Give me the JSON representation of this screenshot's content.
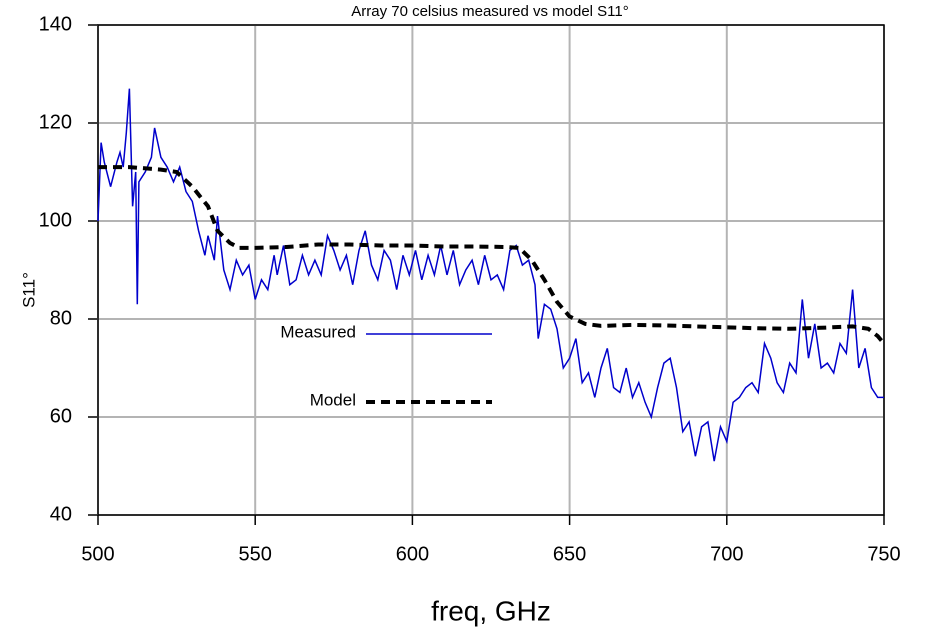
{
  "chart_data": {
    "type": "line",
    "title": "Array 70 celsius measured vs model S11°",
    "x_label": "freq, GHz",
    "y_label": "S11°",
    "xlim": [
      500,
      750
    ],
    "xticks": [
      500,
      550,
      600,
      650,
      700,
      750
    ],
    "ylim": [
      40,
      140
    ],
    "yticks": [
      40,
      60,
      80,
      100,
      120,
      140
    ],
    "grid": true,
    "series": [
      {
        "name": "Measured",
        "color": "#0000cc",
        "style": "solid",
        "x": [
          500,
          501,
          502,
          504,
          506,
          507,
          508,
          509,
          510,
          511,
          512,
          512.5,
          513,
          515,
          517,
          518,
          520,
          522,
          524,
          526,
          528,
          530,
          532,
          534,
          535,
          537,
          538,
          540,
          542,
          544,
          546,
          548,
          550,
          552,
          554,
          556,
          557,
          559,
          561,
          563,
          565,
          567,
          569,
          571,
          573,
          575,
          577,
          579,
          581,
          583,
          585,
          587,
          589,
          591,
          593,
          595,
          597,
          599,
          601,
          603,
          605,
          607,
          609,
          611,
          613,
          615,
          617,
          619,
          621,
          623,
          625,
          627,
          629,
          631,
          633,
          635,
          637,
          639,
          640,
          642,
          644,
          646,
          648,
          650,
          652,
          654,
          656,
          658,
          660,
          662,
          664,
          666,
          668,
          670,
          672,
          674,
          676,
          678,
          680,
          682,
          684,
          686,
          688,
          690,
          692,
          694,
          696,
          698,
          700,
          702,
          704,
          706,
          708,
          710,
          712,
          714,
          716,
          718,
          720,
          722,
          724,
          726,
          728,
          730,
          732,
          734,
          736,
          738,
          740,
          742,
          744,
          746,
          748,
          750
        ],
        "values": [
          100,
          116,
          112,
          107,
          112,
          114,
          111,
          118,
          127,
          103,
          110,
          83,
          108,
          110,
          113,
          119,
          113,
          111,
          108,
          111,
          106,
          104,
          98,
          93,
          97,
          92,
          101,
          90,
          86,
          92,
          89,
          91,
          84,
          88,
          86,
          93,
          89,
          95,
          87,
          88,
          93,
          89,
          92,
          89,
          97,
          94,
          90,
          93,
          87,
          94,
          98,
          91,
          88,
          94,
          92,
          86,
          93,
          89,
          94,
          88,
          93,
          89,
          95,
          89,
          94,
          87,
          90,
          92,
          87,
          93,
          88,
          89,
          86,
          94,
          95,
          91,
          92,
          87,
          76,
          83,
          82,
          78,
          70,
          72,
          76,
          67,
          69,
          64,
          70,
          74,
          66,
          65,
          70,
          64,
          67,
          63,
          60,
          66,
          71,
          72,
          66,
          57,
          59,
          52,
          58,
          59,
          51,
          58,
          55,
          63,
          64,
          66,
          67,
          65,
          75,
          72,
          67,
          65,
          71,
          69,
          84,
          72,
          79,
          70,
          71,
          69,
          75,
          73,
          86,
          70,
          74,
          66,
          64,
          64
        ]
      },
      {
        "name": "Model",
        "color": "#000000",
        "style": "dashed",
        "x": [
          500,
          510,
          520,
          525,
          530,
          535,
          538,
          542,
          545,
          550,
          560,
          570,
          580,
          590,
          600,
          610,
          620,
          630,
          634,
          638,
          642,
          646,
          650,
          655,
          660,
          670,
          680,
          690,
          700,
          710,
          720,
          730,
          740,
          745,
          748,
          750
        ],
        "values": [
          111,
          111,
          110.5,
          110,
          107,
          103,
          98,
          95.5,
          94.5,
          94.5,
          94.7,
          95.2,
          95.2,
          95,
          95,
          94.8,
          94.8,
          94.7,
          94.5,
          92,
          88,
          83.5,
          80.5,
          79,
          78.6,
          78.8,
          78.7,
          78.5,
          78.3,
          78.1,
          78,
          78.2,
          78.5,
          78,
          76.5,
          75
        ]
      }
    ]
  }
}
